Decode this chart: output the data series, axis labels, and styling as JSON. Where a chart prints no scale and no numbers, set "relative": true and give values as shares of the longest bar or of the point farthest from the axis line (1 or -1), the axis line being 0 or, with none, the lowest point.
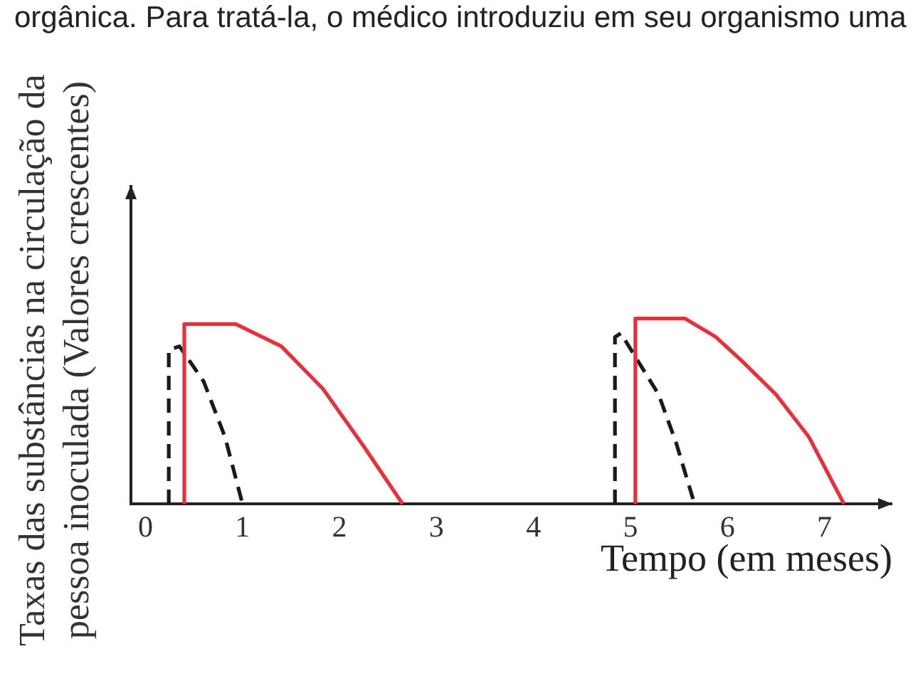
{
  "chart_data": {
    "type": "line",
    "relative": true,
    "ylabel": "Taxas das substâncias na circulação da pessoa inoculada (Valores crescentes)",
    "xlabel": "Tempo (em meses)",
    "annotations": [
      "orgânica. Para tratá-la, o médico introduziu em seu organismo uma"
    ],
    "xlim": [
      -0.15,
      7.7
    ],
    "xticks": [
      0,
      1,
      2,
      3,
      4,
      5,
      6,
      7
    ],
    "tick_labels": "x",
    "series": [
      {
        "color": "#e8303a",
        "line_style": "solid",
        "x": [
          0.4,
          0.4,
          0.93,
          1.4,
          1.83,
          2.25,
          2.65,
          3.8,
          5.05,
          5.05,
          5.56,
          5.88,
          6.15,
          6.5,
          6.84,
          7.2
        ],
        "values": [
          0,
          0.97,
          0.97,
          0.85,
          0.62,
          0.31,
          0,
          null,
          0,
          1,
          1,
          0.9,
          0.77,
          0.59,
          0.36,
          0
        ]
      },
      {
        "color": "#1a1a1a",
        "line_style": "dashed",
        "x": [
          0.24,
          0.24,
          0.35,
          0.6,
          0.82,
          1.0,
          3.0,
          4.84,
          4.84,
          4.9,
          5.29,
          5.47,
          5.66
        ],
        "values": [
          0,
          0.83,
          0.85,
          0.66,
          0.36,
          0,
          null,
          0,
          0.9,
          0.92,
          0.59,
          0.33,
          0
        ]
      }
    ]
  }
}
